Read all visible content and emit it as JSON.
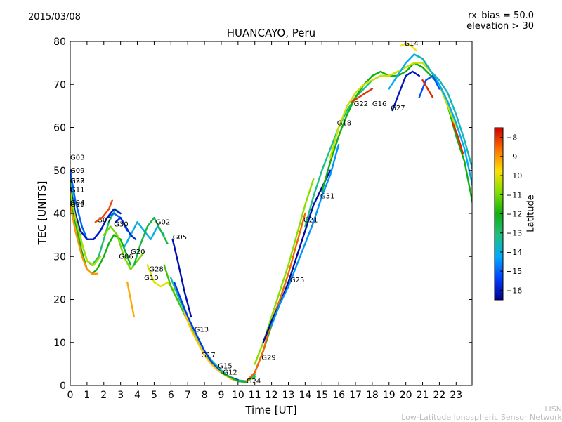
{
  "header": {
    "date": "2015/03/08",
    "rx_bias": "rx_bias = 50.0",
    "elevation": "elevation > 30",
    "title": "HUANCAYO, Peru"
  },
  "footer": {
    "line1": "LISN",
    "line2": "Low-Latitude Ionospheric Sensor Network"
  },
  "chart_data": {
    "type": "scatter",
    "title": "HUANCAYO, Peru",
    "xlabel": "Time [UT]",
    "ylabel": "TEC [UNITS]",
    "xlim": [
      0,
      24
    ],
    "ylim": [
      0,
      80
    ],
    "xticks": [
      0,
      1,
      2,
      3,
      4,
      5,
      6,
      7,
      8,
      9,
      10,
      11,
      12,
      13,
      14,
      15,
      16,
      17,
      18,
      19,
      20,
      21,
      22,
      23
    ],
    "yticks": [
      0,
      10,
      20,
      30,
      40,
      50,
      60,
      70,
      80
    ],
    "colorbar": {
      "label": "Latitude",
      "range": [
        -16.5,
        -7.5
      ],
      "ticks": [
        -8,
        -9,
        -10,
        -11,
        -12,
        -13,
        -14,
        -15,
        -16
      ]
    },
    "satellite_labels": [
      {
        "name": "G03",
        "x": 0.0,
        "y": 52.5
      },
      {
        "name": "G09",
        "x": 0.0,
        "y": 49.5
      },
      {
        "name": "G23",
        "x": 0.0,
        "y": 47.0
      },
      {
        "name": "G32",
        "x": 0.0,
        "y": 47.0
      },
      {
        "name": "G11",
        "x": 0.0,
        "y": 45.0
      },
      {
        "name": "G04",
        "x": 0.0,
        "y": 42.0
      },
      {
        "name": "G19",
        "x": 0.0,
        "y": 41.5
      },
      {
        "name": "G07",
        "x": 1.6,
        "y": 38.0
      },
      {
        "name": "G30",
        "x": 2.6,
        "y": 37.0
      },
      {
        "name": "G02",
        "x": 5.1,
        "y": 37.5
      },
      {
        "name": "G05",
        "x": 6.1,
        "y": 34.0
      },
      {
        "name": "G20",
        "x": 3.6,
        "y": 30.5
      },
      {
        "name": "G06",
        "x": 2.9,
        "y": 29.5
      },
      {
        "name": "G28",
        "x": 4.7,
        "y": 26.5
      },
      {
        "name": "G10",
        "x": 4.4,
        "y": 24.5
      },
      {
        "name": "G13",
        "x": 7.4,
        "y": 12.5
      },
      {
        "name": "G17",
        "x": 7.8,
        "y": 6.5
      },
      {
        "name": "G15",
        "x": 8.8,
        "y": 4.0
      },
      {
        "name": "G12",
        "x": 9.1,
        "y": 2.5
      },
      {
        "name": "G24",
        "x": 10.5,
        "y": 0.5
      },
      {
        "name": "G29",
        "x": 11.4,
        "y": 6.0
      },
      {
        "name": "G25",
        "x": 13.1,
        "y": 24.0
      },
      {
        "name": "G21",
        "x": 13.9,
        "y": 38.0
      },
      {
        "name": "G31",
        "x": 14.9,
        "y": 43.5
      },
      {
        "name": "G18",
        "x": 15.9,
        "y": 60.5
      },
      {
        "name": "G22",
        "x": 16.9,
        "y": 65.0
      },
      {
        "name": "G16",
        "x": 18.0,
        "y": 65.0
      },
      {
        "name": "G27",
        "x": 19.1,
        "y": 64.0
      },
      {
        "name": "G14",
        "x": 19.9,
        "y": 79.0
      }
    ],
    "series": [
      {
        "lat": -12.0,
        "x": [
          0,
          0.3,
          0.7,
          1.0,
          1.3,
          1.6,
          2.0,
          2.3,
          2.6,
          3.0,
          3.3,
          3.6
        ],
        "y": [
          44,
          38,
          31,
          27,
          26,
          27,
          30,
          33,
          35,
          34,
          31,
          28
        ]
      },
      {
        "lat": -13.0,
        "x": [
          0,
          0.3,
          0.7,
          1.0,
          1.3,
          1.7,
          2.0,
          2.3,
          2.7,
          3.0
        ],
        "y": [
          48,
          40,
          33,
          29,
          28,
          30,
          34,
          38,
          41,
          40
        ]
      },
      {
        "lat": -15.0,
        "x": [
          0,
          0.3,
          0.7,
          1.0,
          1.4,
          1.8,
          2.2,
          2.6,
          3.0,
          3.4
        ],
        "y": [
          50,
          43,
          37,
          34,
          34,
          36,
          39,
          40,
          39,
          36
        ]
      },
      {
        "lat": -16.0,
        "x": [
          0,
          0.3,
          0.6,
          1.0,
          1.4,
          1.8,
          2.2,
          2.6,
          3.0
        ],
        "y": [
          46,
          40,
          36,
          34,
          34,
          36,
          39,
          41,
          40
        ]
      },
      {
        "lat": -9.0,
        "x": [
          0,
          0.3,
          0.7,
          1.0,
          1.3,
          1.6
        ],
        "y": [
          42,
          36,
          30,
          27,
          26,
          26
        ]
      },
      {
        "lat": -10.5,
        "x": [
          0,
          0.3,
          0.7,
          1.0,
          1.4,
          1.8
        ],
        "y": [
          45,
          39,
          33,
          29,
          28,
          30
        ]
      },
      {
        "lat": -11.0,
        "x": [
          2.0,
          2.4,
          2.8,
          3.2,
          3.6,
          4.0,
          4.4
        ],
        "y": [
          35,
          37,
          35,
          30,
          27,
          29,
          31
        ]
      },
      {
        "lat": -14.0,
        "x": [
          3.2,
          3.6,
          4.0,
          4.4,
          4.8,
          5.2,
          5.6
        ],
        "y": [
          32,
          35,
          38,
          36,
          34,
          37,
          35
        ]
      },
      {
        "lat": -12.5,
        "x": [
          3.8,
          4.2,
          4.6,
          5.0,
          5.4,
          5.8
        ],
        "y": [
          28,
          33,
          37,
          39,
          36,
          33
        ]
      },
      {
        "lat": -10.0,
        "x": [
          4.6,
          5.0,
          5.4,
          5.8,
          6.2
        ],
        "y": [
          28,
          24,
          23,
          24,
          22
        ]
      },
      {
        "lat": -16.2,
        "x": [
          6.1,
          6.4,
          6.8,
          7.2
        ],
        "y": [
          34,
          29,
          22,
          16
        ]
      },
      {
        "lat": -11.5,
        "x": [
          5.6,
          6.0,
          6.5,
          7.0,
          7.5,
          8.0,
          8.5,
          9.0,
          9.5,
          10.0,
          10.5,
          11.0
        ],
        "y": [
          28,
          23,
          19,
          15,
          11,
          7,
          5,
          3.5,
          2,
          1.2,
          1.0,
          2
        ]
      },
      {
        "lat": -13.5,
        "x": [
          6.0,
          6.5,
          7.0,
          7.5,
          8.0,
          8.5,
          9.0,
          9.5,
          10.0,
          10.5,
          11.0
        ],
        "y": [
          25,
          20,
          16,
          12,
          8,
          5.5,
          3.5,
          2,
          1.2,
          1,
          2.5
        ]
      },
      {
        "lat": -15.5,
        "x": [
          6.2,
          6.6,
          7.0,
          7.5,
          8.0,
          8.5,
          9.0,
          9.5,
          10.0
        ],
        "y": [
          24,
          20,
          16,
          12,
          8,
          5,
          3,
          2,
          1.3
        ]
      },
      {
        "lat": -9.5,
        "x": [
          6.8,
          7.2,
          7.6,
          8.0,
          8.4,
          8.8,
          9.2,
          9.6,
          10.0,
          10.5
        ],
        "y": [
          17,
          13,
          10,
          7,
          5,
          3.5,
          2.5,
          1.5,
          1,
          0.8
        ]
      },
      {
        "lat": -12.2,
        "x": [
          9.0,
          9.5,
          10.0,
          10.5,
          11.0,
          11.5,
          12.0,
          12.5,
          13.0
        ],
        "y": [
          3,
          2,
          1,
          0.8,
          3,
          8,
          14,
          20,
          26
        ]
      },
      {
        "lat": -8.5,
        "x": [
          10.5,
          11.0,
          11.5,
          12.0,
          12.5,
          13.0,
          13.5,
          14.0
        ],
        "y": [
          1,
          3,
          8,
          15,
          20,
          26,
          33,
          40
        ]
      },
      {
        "lat": -10.8,
        "x": [
          11.0,
          11.5,
          12.0,
          12.5,
          13.0,
          13.5,
          14.0,
          14.5
        ],
        "y": [
          5,
          10,
          16,
          22,
          28,
          35,
          42,
          48
        ]
      },
      {
        "lat": -16.3,
        "x": [
          11.5,
          12.0,
          12.5,
          13.0,
          13.5,
          14.0,
          14.5,
          15.0,
          15.5
        ],
        "y": [
          10,
          15,
          19,
          24,
          30,
          36,
          42,
          46,
          50
        ]
      },
      {
        "lat": -14.5,
        "x": [
          12.0,
          12.5,
          13.0,
          13.5,
          14.0,
          14.5,
          15.0,
          15.5,
          16.0
        ],
        "y": [
          14,
          19,
          23,
          28,
          33,
          38,
          44,
          49,
          56
        ]
      },
      {
        "lat": -13.2,
        "x": [
          14.0,
          14.5,
          15.0,
          15.5,
          16.0,
          16.5,
          17.0,
          17.5,
          18.0,
          18.5,
          19.0
        ],
        "y": [
          37,
          44,
          50,
          55,
          60,
          64,
          67,
          69,
          71,
          72,
          72
        ]
      },
      {
        "lat": -12.0,
        "x": [
          15.0,
          15.5,
          16.0,
          16.5,
          17.0,
          17.5,
          18.0,
          18.5,
          19.0,
          19.5,
          20.0,
          20.5,
          21.0,
          21.5,
          22.0,
          22.5,
          23.0,
          23.5,
          24.0
        ],
        "y": [
          45,
          52,
          58,
          63,
          67,
          70,
          72,
          73,
          72,
          72,
          73,
          75,
          74,
          72,
          70,
          65,
          58,
          52,
          42
        ]
      },
      {
        "lat": -10.2,
        "x": [
          15.5,
          16.0,
          16.5,
          17.0,
          17.5,
          18.0,
          18.5,
          19.0,
          19.5,
          20.0,
          20.5,
          21.0,
          21.5,
          22.0,
          22.5,
          23.0
        ],
        "y": [
          53,
          60,
          65,
          68,
          70,
          71,
          72,
          72,
          73,
          74,
          75,
          75,
          73,
          70,
          65,
          60
        ]
      },
      {
        "lat": -9.8,
        "x": [
          19.7,
          20.0,
          20.3,
          20.6
        ],
        "y": [
          79,
          79.5,
          79,
          78
        ]
      },
      {
        "lat": -14.2,
        "x": [
          19.0,
          19.5,
          20.0,
          20.5,
          21.0,
          21.5,
          22.0,
          22.5,
          23.0,
          23.5,
          24.0
        ],
        "y": [
          69,
          72,
          75,
          77,
          76,
          73,
          70,
          66,
          61,
          55,
          46
        ]
      },
      {
        "lat": -13.6,
        "x": [
          20.5,
          21.0,
          21.5,
          22.0,
          22.5,
          23.0,
          23.5,
          24.0
        ],
        "y": [
          77,
          76,
          73,
          71,
          68,
          63,
          57,
          50
        ]
      },
      {
        "lat": -16.1,
        "x": [
          19.2,
          19.6,
          20.0,
          20.4,
          20.8
        ],
        "y": [
          64,
          68,
          72,
          73,
          72
        ]
      },
      {
        "lat": -15.2,
        "x": [
          20.8,
          21.2,
          21.6,
          22.0
        ],
        "y": [
          67,
          71,
          72,
          69
        ]
      },
      {
        "lat": -8.0,
        "x": [
          16.8,
          17.2,
          17.6,
          18.0
        ],
        "y": [
          66,
          67,
          68,
          69
        ]
      },
      {
        "lat": -7.9,
        "x": [
          21.0,
          21.3,
          21.6
        ],
        "y": [
          71,
          69,
          67
        ]
      },
      {
        "lat": -7.9,
        "x": [
          22.8,
          23.1,
          23.4
        ],
        "y": [
          61,
          58,
          54
        ]
      },
      {
        "lat": -8.2,
        "x": [
          1.5,
          1.9,
          2.3,
          2.5
        ],
        "y": [
          38,
          39,
          41,
          43
        ]
      },
      {
        "lat": -15.8,
        "x": [
          2.7,
          3.0,
          3.3,
          3.6,
          3.9
        ],
        "y": [
          38,
          39,
          37,
          35,
          34
        ]
      },
      {
        "lat": -9.2,
        "x": [
          3.4,
          3.6,
          3.8
        ],
        "y": [
          24,
          20,
          16
        ]
      }
    ]
  }
}
